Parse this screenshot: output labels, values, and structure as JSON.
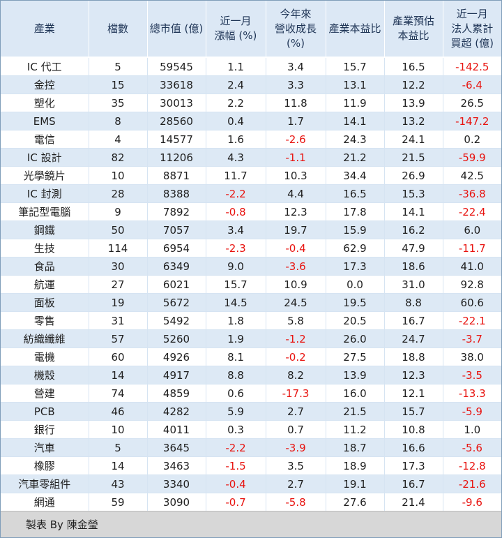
{
  "table": {
    "headers": [
      "產業",
      "檔數",
      "總市值 (億)",
      "近一月\n漲幅 (%)",
      "今年來\n營收成長\n(%)",
      "產業本益比",
      "產業預估\n本益比",
      "近一月\n法人累計\n買超 (億)"
    ],
    "rows": [
      [
        "IC 代工",
        "5",
        "59545",
        "1.1",
        "3.4",
        "15.7",
        "16.5",
        "-142.5"
      ],
      [
        "金控",
        "15",
        "33618",
        "2.4",
        "3.3",
        "13.1",
        "12.2",
        "-6.4"
      ],
      [
        "塑化",
        "35",
        "30013",
        "2.2",
        "11.8",
        "11.9",
        "13.9",
        "26.5"
      ],
      [
        "EMS",
        "8",
        "28560",
        "0.4",
        "1.7",
        "14.1",
        "13.2",
        "-147.2"
      ],
      [
        "電信",
        "4",
        "14577",
        "1.6",
        "-2.6",
        "24.3",
        "24.1",
        "0.2"
      ],
      [
        "IC 設計",
        "82",
        "11206",
        "4.3",
        "-1.1",
        "21.2",
        "21.5",
        "-59.9"
      ],
      [
        "光學鏡片",
        "10",
        "8871",
        "11.7",
        "10.3",
        "34.4",
        "26.9",
        "42.5"
      ],
      [
        "IC 封測",
        "28",
        "8388",
        "-2.2",
        "4.4",
        "16.5",
        "15.3",
        "-36.8"
      ],
      [
        "筆記型電腦",
        "9",
        "7892",
        "-0.8",
        "12.3",
        "17.8",
        "14.1",
        "-22.4"
      ],
      [
        "鋼鐵",
        "50",
        "7057",
        "3.4",
        "19.7",
        "15.9",
        "16.2",
        "6.0"
      ],
      [
        "生技",
        "114",
        "6954",
        "-2.3",
        "-0.4",
        "62.9",
        "47.9",
        "-11.7"
      ],
      [
        "食品",
        "30",
        "6349",
        "9.0",
        "-3.6",
        "17.3",
        "18.6",
        "41.0"
      ],
      [
        "航運",
        "27",
        "6021",
        "15.7",
        "10.9",
        "0.0",
        "31.0",
        "92.8"
      ],
      [
        "面板",
        "19",
        "5672",
        "14.5",
        "24.5",
        "19.5",
        "8.8",
        "60.6"
      ],
      [
        "零售",
        "31",
        "5492",
        "1.8",
        "5.8",
        "20.5",
        "16.7",
        "-22.1"
      ],
      [
        "紡織纖維",
        "57",
        "5260",
        "1.9",
        "-1.2",
        "26.0",
        "24.7",
        "-3.7"
      ],
      [
        "電機",
        "60",
        "4926",
        "8.1",
        "-0.2",
        "27.5",
        "18.8",
        "38.0"
      ],
      [
        "機殼",
        "14",
        "4917",
        "8.8",
        "8.2",
        "13.9",
        "12.3",
        "-3.5"
      ],
      [
        "營建",
        "74",
        "4859",
        "0.6",
        "-17.3",
        "16.0",
        "12.1",
        "-13.3"
      ],
      [
        "PCB",
        "46",
        "4282",
        "5.9",
        "2.7",
        "21.5",
        "15.7",
        "-5.9"
      ],
      [
        "銀行",
        "10",
        "4011",
        "0.3",
        "0.7",
        "11.2",
        "10.8",
        "1.0"
      ],
      [
        "汽車",
        "5",
        "3645",
        "-2.2",
        "-3.9",
        "18.7",
        "16.6",
        "-5.6"
      ],
      [
        "橡膠",
        "14",
        "3463",
        "-1.5",
        "3.5",
        "18.9",
        "17.3",
        "-12.8"
      ],
      [
        "汽車零組件",
        "43",
        "3340",
        "-0.4",
        "2.7",
        "19.1",
        "16.7",
        "-21.6"
      ],
      [
        "網通",
        "59",
        "3090",
        "-0.7",
        "-5.8",
        "27.6",
        "21.4",
        "-9.6"
      ]
    ]
  },
  "footer": {
    "credit": "製表 By 陳金瑩"
  },
  "colors": {
    "header_bg": "#dce8f5",
    "row_alt_bg": "#dde9f5",
    "negative": "#e8130f",
    "footer_bg": "#d7d7d7"
  }
}
